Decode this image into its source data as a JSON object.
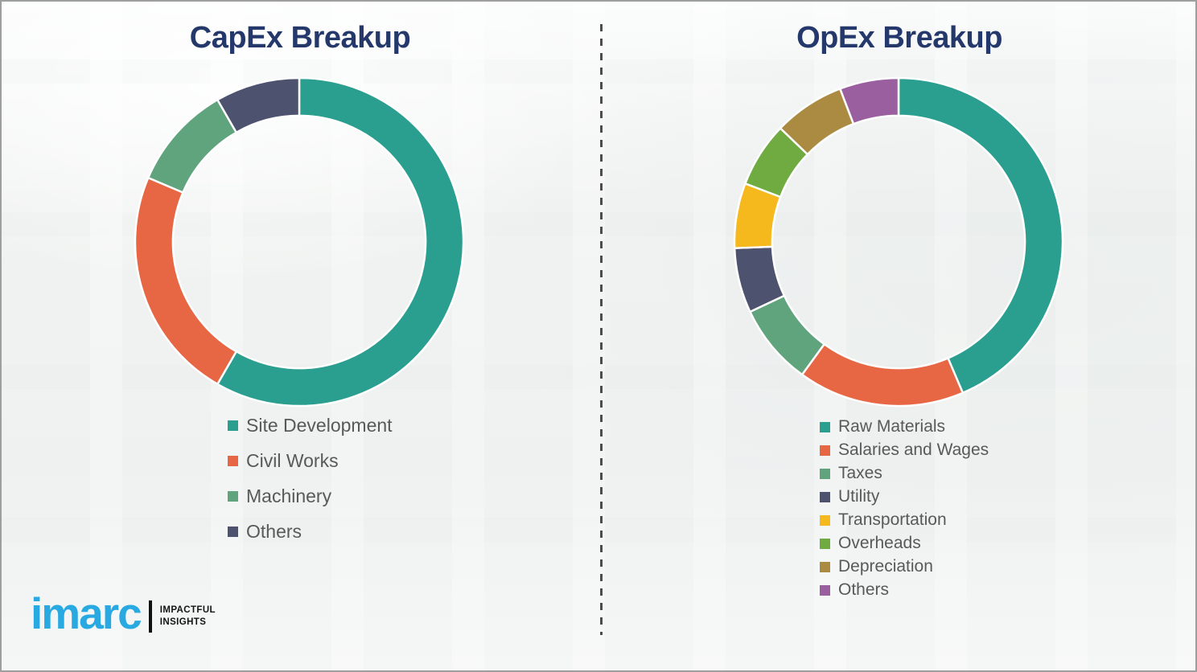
{
  "page": {
    "background_color": "#f1f3f2",
    "divider_color": "#4c4c4c",
    "title_color": "#24386b",
    "legend_text_color": "#595959"
  },
  "logo": {
    "brand": "imarc",
    "brand_color": "#29a9e1",
    "tagline_line1": "IMPACTFUL",
    "tagline_line2": "INSIGHTS"
  },
  "chart_data": [
    {
      "id": "capex",
      "type": "pie",
      "subtype": "donut",
      "title": "CapEx Breakup",
      "hole_ratio": 0.77,
      "start_angle_deg": 0,
      "direction": "clockwise",
      "legend_position": "below-left",
      "segments": [
        {
          "label": "Site Development",
          "value": 58.3,
          "color": "#2a9e8f"
        },
        {
          "label": "Civil Works",
          "value": 23.1,
          "color": "#e76744"
        },
        {
          "label": "Machinery",
          "value": 10.3,
          "color": "#5fa47c"
        },
        {
          "label": "Others",
          "value": 8.3,
          "color": "#4d536e"
        }
      ]
    },
    {
      "id": "opex",
      "type": "pie",
      "subtype": "donut",
      "title": "OpEx Breakup",
      "hole_ratio": 0.77,
      "start_angle_deg": 0,
      "direction": "clockwise",
      "legend_position": "below-left",
      "segments": [
        {
          "label": "Raw Materials",
          "value": 43.6,
          "color": "#2a9e8f"
        },
        {
          "label": "Salaries and Wages",
          "value": 16.4,
          "color": "#e76744"
        },
        {
          "label": "Taxes",
          "value": 8.0,
          "color": "#5fa47c"
        },
        {
          "label": "Utility",
          "value": 6.4,
          "color": "#4d536e"
        },
        {
          "label": "Transportation",
          "value": 6.4,
          "color": "#f5b91e"
        },
        {
          "label": "Overheads",
          "value": 6.4,
          "color": "#6fab41"
        },
        {
          "label": "Depreciation",
          "value": 7.0,
          "color": "#aa8b41"
        },
        {
          "label": "Others",
          "value": 5.8,
          "color": "#9a5f9e"
        }
      ]
    }
  ]
}
